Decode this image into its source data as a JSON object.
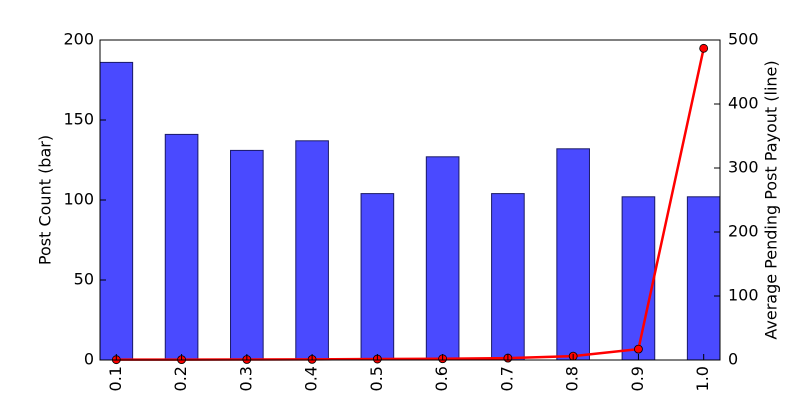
{
  "chart_data": {
    "type": "bar",
    "ylabel": "Post Count (bar)",
    "y2label": "Average Pending Post Payout (line)",
    "categories": [
      "0.1",
      "0.2",
      "0.3",
      "0.4",
      "0.5",
      "0.6",
      "0.7",
      "0.8",
      "0.9",
      "1.0"
    ],
    "series": [
      {
        "type": "bar",
        "color": "#4a4aff",
        "values": [
          186,
          141,
          131,
          137,
          104,
          127,
          104,
          132,
          102,
          102
        ]
      },
      {
        "type": "line",
        "axis": "y2",
        "color": "#ff0000",
        "values": [
          0.5,
          0.6,
          0.8,
          1,
          1.5,
          2,
          3,
          6,
          17,
          487
        ]
      }
    ],
    "ylim": [
      0,
      200
    ],
    "yticks": [
      0,
      50,
      100,
      150,
      200
    ],
    "y2lim": [
      0,
      500
    ],
    "y2ticks": [
      0,
      100,
      200,
      300,
      400,
      500
    ]
  }
}
